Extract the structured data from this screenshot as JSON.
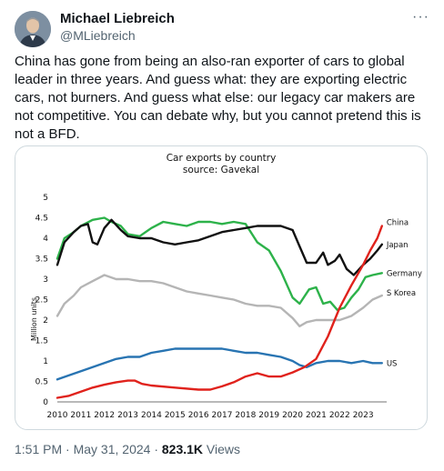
{
  "author": {
    "name": "Michael Liebreich",
    "handle": "@MLiebreich"
  },
  "tweet": {
    "text": "China has gone from being an also-ran exporter of cars to global leader in three years. And guess what: they are exporting electric cars, not burners. And guess what else: our legacy car makers are not competitive. You can debate why, but you cannot pretend this is not a BFD."
  },
  "meta": {
    "time": "1:51 PM",
    "separator": " · ",
    "date": "May 31, 2024",
    "views_count": "823.1K",
    "views_label": " Views"
  },
  "icons": {
    "more": "more-icon",
    "avatar": "avatar"
  },
  "chart_data": {
    "type": "line",
    "title": "Car exports by country",
    "subtitle": "source: Gavekal",
    "ylabel": "Million units",
    "xlabel": "",
    "ylim": [
      0,
      5
    ],
    "xlim": [
      2010,
      2024
    ],
    "yticks": [
      "0",
      "0.5",
      "1",
      "1.5",
      "2",
      "2.5",
      "3",
      "3.5",
      "4",
      "4.5",
      "5"
    ],
    "xticks": [
      "2010",
      "2011",
      "2012",
      "2013",
      "2014",
      "2015",
      "2016",
      "2017",
      "2018",
      "2019",
      "2020",
      "2021",
      "2022",
      "2023"
    ],
    "grid": false,
    "series": [
      {
        "name": "China",
        "color": "#e0221c",
        "x": [
          2010,
          2010.5,
          2011,
          2011.5,
          2012,
          2012.5,
          2013,
          2013.3,
          2013.6,
          2014,
          2015,
          2016,
          2016.5,
          2017,
          2017.5,
          2018,
          2018.5,
          2019,
          2019.5,
          2020,
          2020.5,
          2021,
          2021.5,
          2022,
          2022.5,
          2023,
          2023.3,
          2023.6,
          2023.8
        ],
        "y": [
          0.1,
          0.15,
          0.25,
          0.35,
          0.42,
          0.48,
          0.52,
          0.52,
          0.44,
          0.4,
          0.35,
          0.3,
          0.3,
          0.38,
          0.48,
          0.62,
          0.7,
          0.62,
          0.62,
          0.72,
          0.85,
          1.05,
          1.6,
          2.3,
          2.85,
          3.35,
          3.7,
          4.0,
          4.3
        ]
      },
      {
        "name": "Japan",
        "color": "#111111",
        "x": [
          2010,
          2010.3,
          2010.7,
          2011,
          2011.3,
          2011.5,
          2011.7,
          2012,
          2012.3,
          2012.7,
          2013,
          2013.5,
          2014,
          2014.5,
          2015,
          2015.5,
          2016,
          2016.5,
          2017,
          2017.5,
          2018,
          2018.5,
          2019,
          2019.5,
          2020,
          2020.3,
          2020.6,
          2021,
          2021.3,
          2021.5,
          2021.8,
          2022,
          2022.3,
          2022.6,
          2023,
          2023.3,
          2023.6,
          2023.8
        ],
        "y": [
          3.35,
          3.9,
          4.15,
          4.3,
          4.35,
          3.9,
          3.85,
          4.25,
          4.45,
          4.2,
          4.05,
          4.0,
          4.0,
          3.9,
          3.85,
          3.9,
          3.95,
          4.05,
          4.15,
          4.2,
          4.25,
          4.3,
          4.3,
          4.3,
          4.2,
          3.8,
          3.4,
          3.4,
          3.65,
          3.35,
          3.45,
          3.6,
          3.25,
          3.1,
          3.35,
          3.5,
          3.7,
          3.85
        ]
      },
      {
        "name": "Germany",
        "color": "#2db24a",
        "x": [
          2010,
          2010.3,
          2010.7,
          2011,
          2011.5,
          2012,
          2012.3,
          2012.7,
          2013,
          2013.5,
          2014,
          2014.5,
          2015,
          2015.5,
          2016,
          2016.5,
          2017,
          2017.5,
          2018,
          2018.5,
          2019,
          2019.5,
          2020,
          2020.3,
          2020.7,
          2021,
          2021.3,
          2021.6,
          2021.9,
          2022.2,
          2022.5,
          2022.8,
          2023.1,
          2023.4,
          2023.8
        ],
        "y": [
          3.5,
          4.0,
          4.15,
          4.3,
          4.45,
          4.5,
          4.4,
          4.3,
          4.1,
          4.05,
          4.25,
          4.4,
          4.35,
          4.3,
          4.4,
          4.4,
          4.35,
          4.4,
          4.35,
          3.9,
          3.7,
          3.2,
          2.55,
          2.4,
          2.75,
          2.8,
          2.4,
          2.45,
          2.25,
          2.3,
          2.55,
          2.75,
          3.05,
          3.1,
          3.15
        ]
      },
      {
        "name": "S Korea",
        "color": "#b5b5b5",
        "x": [
          2010,
          2010.3,
          2010.7,
          2011,
          2011.5,
          2012,
          2012.5,
          2013,
          2013.5,
          2014,
          2014.5,
          2015,
          2015.5,
          2016,
          2016.5,
          2017,
          2017.5,
          2018,
          2018.5,
          2019,
          2019.5,
          2020,
          2020.3,
          2020.6,
          2021,
          2021.5,
          2022,
          2022.5,
          2023,
          2023.4,
          2023.8
        ],
        "y": [
          2.1,
          2.4,
          2.6,
          2.8,
          2.95,
          3.1,
          3.0,
          3.0,
          2.95,
          2.95,
          2.9,
          2.8,
          2.7,
          2.65,
          2.6,
          2.55,
          2.5,
          2.4,
          2.35,
          2.35,
          2.3,
          2.05,
          1.85,
          1.95,
          2.0,
          2.0,
          2.0,
          2.1,
          2.3,
          2.5,
          2.6
        ]
      },
      {
        "name": "US",
        "color": "#2874b2",
        "x": [
          2010,
          2010.5,
          2011,
          2011.5,
          2012,
          2012.5,
          2013,
          2013.5,
          2014,
          2014.5,
          2015,
          2015.5,
          2016,
          2016.5,
          2017,
          2017.5,
          2018,
          2018.5,
          2019,
          2019.5,
          2020,
          2020.3,
          2020.6,
          2021,
          2021.5,
          2022,
          2022.5,
          2023,
          2023.4,
          2023.8
        ],
        "y": [
          0.55,
          0.65,
          0.75,
          0.85,
          0.95,
          1.05,
          1.1,
          1.1,
          1.2,
          1.25,
          1.3,
          1.3,
          1.3,
          1.3,
          1.3,
          1.25,
          1.2,
          1.2,
          1.15,
          1.1,
          1.0,
          0.9,
          0.85,
          0.95,
          1.0,
          1.0,
          0.95,
          1.0,
          0.95,
          0.95
        ]
      }
    ]
  }
}
